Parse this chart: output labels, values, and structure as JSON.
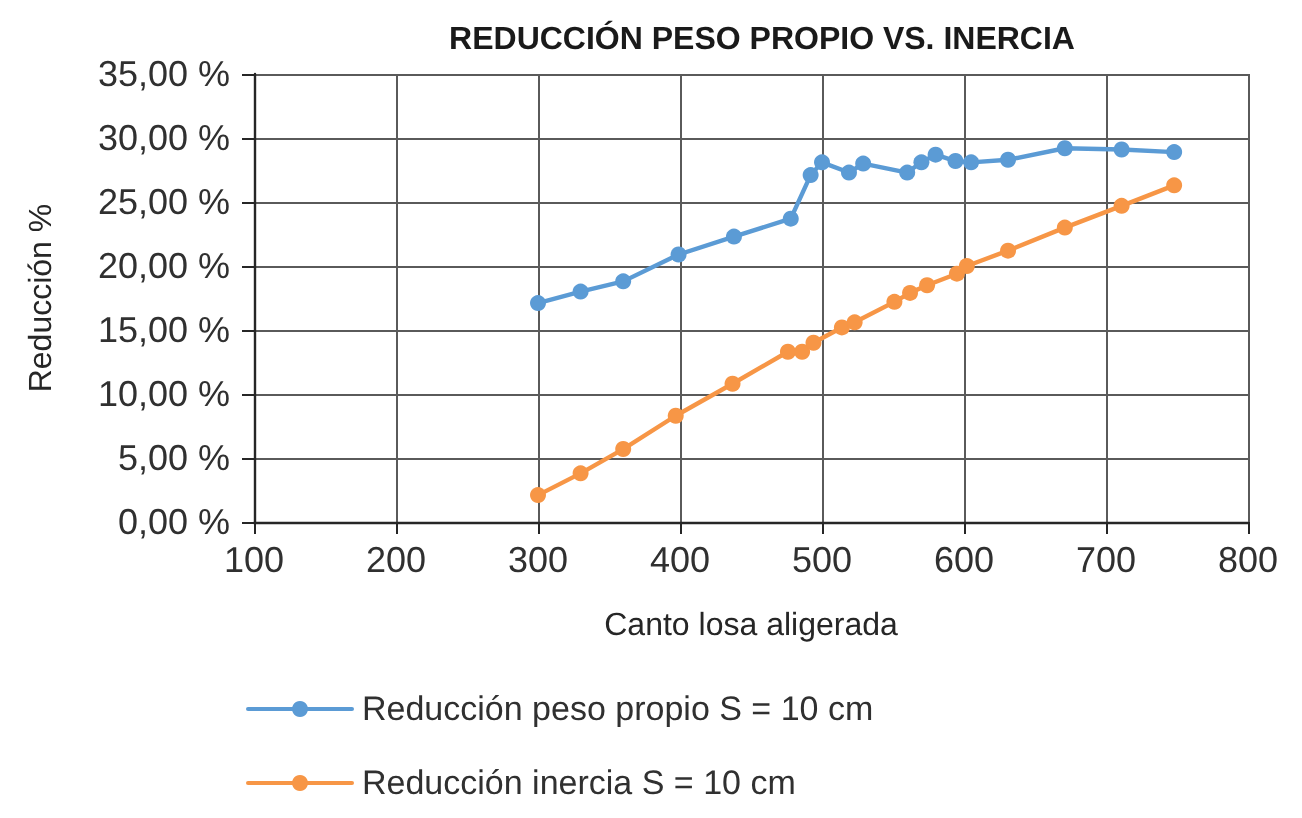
{
  "chart_data": {
    "type": "line",
    "title": "REDUCCIÓN PESO PROPIO VS. INERCIA",
    "xlabel": "Canto losa aligerada",
    "ylabel": "Reducción %",
    "series": [
      {
        "name": "Reducción peso propio S = 10 cm",
        "color": "#5b9bd5",
        "x": [
          300,
          330,
          360,
          399,
          438,
          478,
          492,
          500,
          519,
          529,
          560,
          570,
          580,
          594,
          605,
          631,
          671,
          711,
          748
        ],
        "values": [
          17.1,
          18.0,
          18.8,
          20.9,
          22.3,
          23.7,
          27.1,
          28.1,
          27.3,
          28.0,
          27.3,
          28.1,
          28.7,
          28.2,
          28.1,
          28.3,
          29.2,
          29.1,
          28.9
        ]
      },
      {
        "name": "Reducción inercia S = 10 cm",
        "color": "#f79646",
        "x": [
          300,
          330,
          360,
          397,
          437,
          476,
          486,
          494,
          514,
          523,
          551,
          562,
          574,
          595,
          602,
          631,
          671,
          711,
          748
        ],
        "values": [
          2.1,
          3.8,
          5.7,
          8.3,
          10.8,
          13.3,
          13.3,
          14.0,
          15.2,
          15.6,
          17.2,
          17.9,
          18.5,
          19.4,
          20.0,
          21.2,
          23.0,
          24.7,
          26.3
        ]
      }
    ],
    "xlim": [
      100,
      800
    ],
    "xticks": [
      100,
      200,
      300,
      400,
      500,
      600,
      700,
      800
    ],
    "ylim": [
      0,
      35
    ],
    "yticks": [
      {
        "value": 0,
        "label": "0,00 %"
      },
      {
        "value": 5,
        "label": "5,00 %"
      },
      {
        "value": 10,
        "label": "10,00 %"
      },
      {
        "value": 15,
        "label": "15,00 %"
      },
      {
        "value": 20,
        "label": "20,00 %"
      },
      {
        "value": 25,
        "label": "25,00 %"
      },
      {
        "value": 30,
        "label": "30,00 %"
      },
      {
        "value": 35,
        "label": "35,00 %"
      }
    ],
    "grid": true,
    "legend": "bottom",
    "marker": "circle",
    "line_style": "solid"
  }
}
